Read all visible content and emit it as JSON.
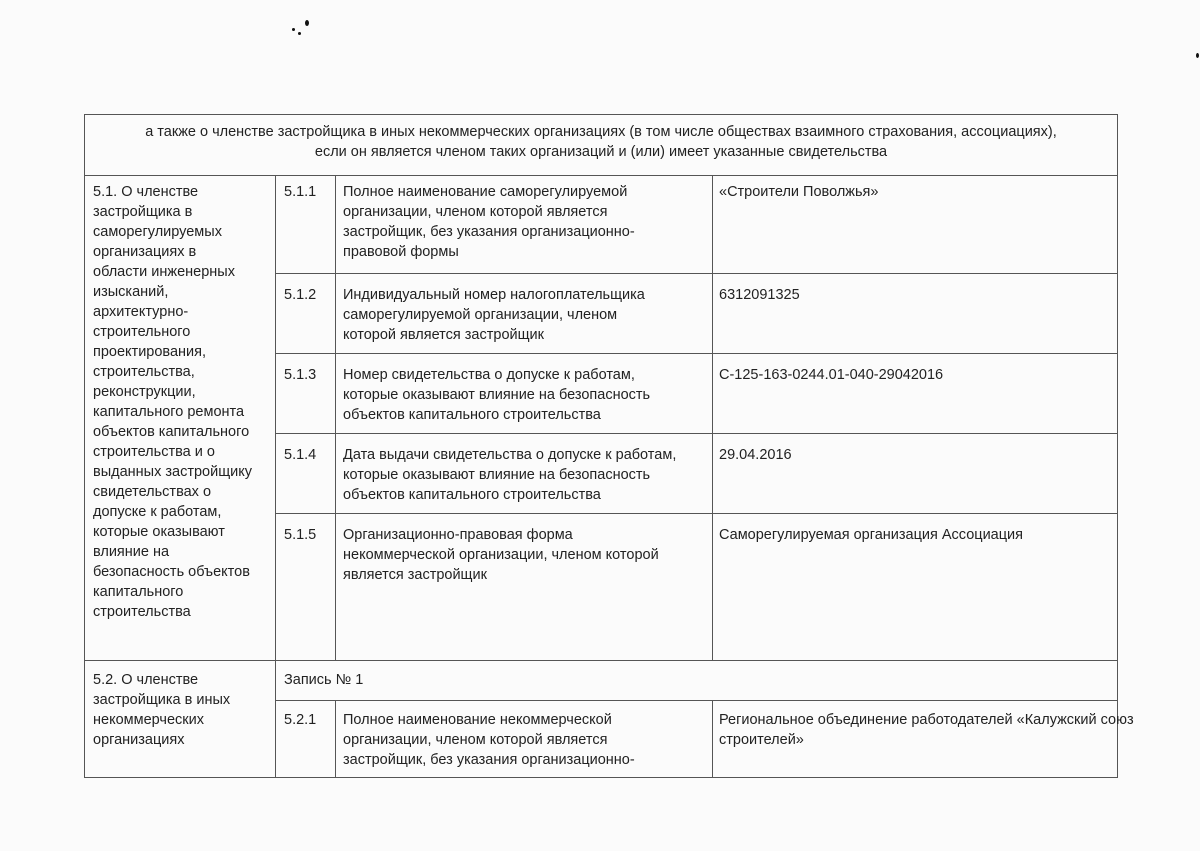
{
  "header": "а также о членстве застройщика в иных некоммерческих организациях (в том числе обществах взаимного страхования, ассоциациях),\nесли он является членом таких организаций и (или) имеет указанные свидетельства",
  "section_5_1": {
    "title": "5.1. О членстве\nзастройщика в\nсаморегулируемых\nорганизациях в\nобласти инженерных\nизысканий,\nархитектурно-\nстроительного\nпроектирования,\nстроительства,\nреконструкции,\nкапитального ремонта\nобъектов капитального\nстроительства и о\nвыданных застройщику\nсвидетельствах о\nдопуске к работам,\nкоторые оказывают\nвлияние на\nбезопасность объектов\nкапитального\nстроительства",
    "rows": [
      {
        "num": "5.1.1",
        "label": "Полное наименование саморегулируемой\nорганизации, членом которой является\nзастройщик, без указания организационно-\nправовой формы",
        "value": "«Строители Поволжья»"
      },
      {
        "num": "5.1.2",
        "label": "Индивидуальный номер налогоплательщика\nсаморегулируемой организации, членом\nкоторой является застройщик",
        "value": "6312091325"
      },
      {
        "num": "5.1.3",
        "label": "Номер свидетельства о допуске к работам,\nкоторые оказывают влияние на безопасность\nобъектов капитального строительства",
        "value": "С-125-163-0244.01-040-29042016"
      },
      {
        "num": "5.1.4",
        "label": "Дата выдачи свидетельства о допуске к работам,\nкоторые оказывают влияние на безопасность\nобъектов капитального строительства",
        "value": "29.04.2016"
      },
      {
        "num": "5.1.5",
        "label": "Организационно-правовая форма\nнекоммерческой организации, членом которой\nявляется застройщик",
        "value": "Саморегулируемая организация Ассоциация"
      }
    ]
  },
  "section_5_2": {
    "title": "5.2. О членстве\nзастройщика в иных\nнекоммерческих\nорганизациях",
    "record": "Запись № 1",
    "rows": [
      {
        "num": "5.2.1",
        "label": "Полное наименование некоммерческой\nорганизации, членом которой является\nзастройщик, без указания организационно-",
        "value": "Региональное объединение работодателей «Калужский союз\nстроителей»"
      }
    ]
  }
}
